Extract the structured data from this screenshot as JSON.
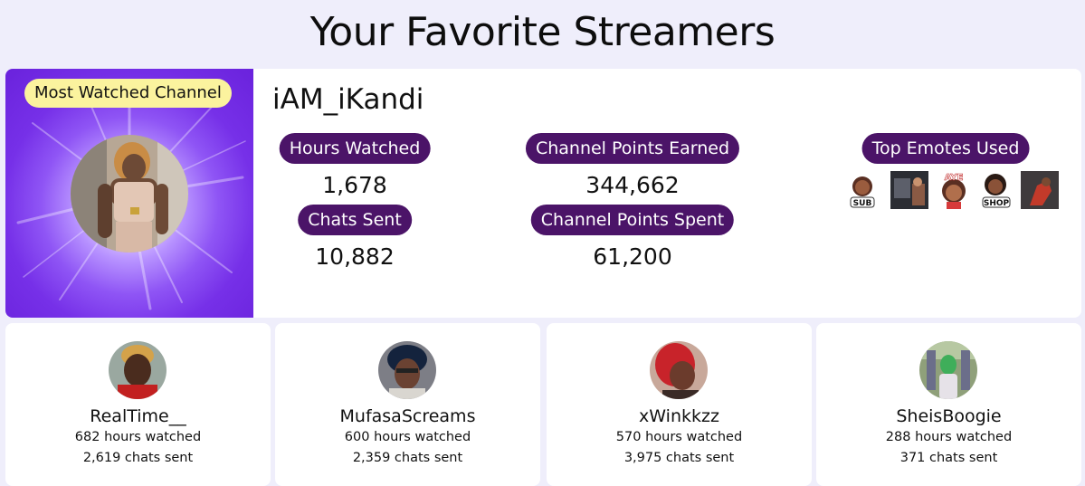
{
  "page": {
    "title": "Your Favorite Streamers"
  },
  "featured": {
    "badge": "Most Watched Channel",
    "name": "iAM_iKandi",
    "stats": {
      "hours_label": "Hours Watched",
      "hours_value": "1,678",
      "chats_label": "Chats Sent",
      "chats_value": "10,882",
      "points_earned_label": "Channel Points Earned",
      "points_earned_value": "344,662",
      "points_spent_label": "Channel Points Spent",
      "points_spent_value": "61,200"
    },
    "emotes_label": "Top Emotes Used",
    "emotes": [
      {
        "icon": "sub-emote-icon",
        "text": "SUB"
      },
      {
        "icon": "photo-emote-icon",
        "text": ""
      },
      {
        "icon": "aye-emote-icon",
        "text": "AYE"
      },
      {
        "icon": "shop-emote-icon",
        "text": "SHOP"
      },
      {
        "icon": "pose-emote-icon",
        "text": ""
      }
    ]
  },
  "streamers": [
    {
      "name": "RealTime__",
      "hours": "682 hours watched",
      "chats": "2,619 chats sent"
    },
    {
      "name": "MufasaScreams",
      "hours": "600 hours watched",
      "chats": "2,359 chats sent"
    },
    {
      "name": "xWinkkzz",
      "hours": "570 hours watched",
      "chats": "3,975 chats sent"
    },
    {
      "name": "SheisBoogie",
      "hours": "288 hours watched",
      "chats": "371 chats sent"
    }
  ],
  "colors": {
    "background": "#efeefb",
    "pill": "#4b1468",
    "badge": "#fbf39e",
    "feature_purple": "#7630e8"
  }
}
